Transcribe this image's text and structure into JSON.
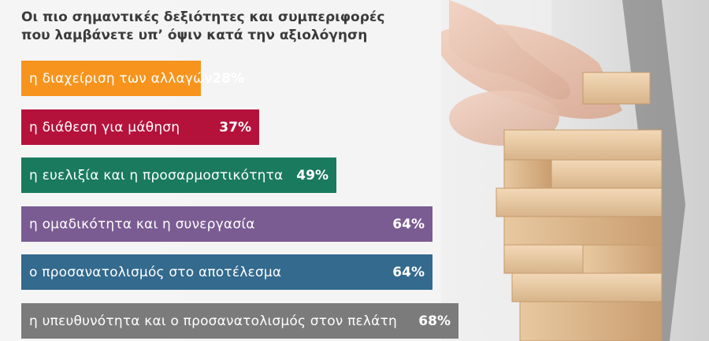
{
  "title_line1": "Οι πιο σημαντικές δεξιότητες και συμπεριφορές",
  "title_line2": "που λαμβάνετε υπ’ όψιν κατά την αξιολόγηση",
  "chart_data": {
    "type": "bar",
    "orientation": "horizontal",
    "title": "Οι πιο σημαντικές δεξιότητες και συμπεριφορές που λαμβάνετε υπ’ όψιν κατά την αξιολόγηση",
    "xlim": [
      0,
      100
    ],
    "categories": [
      "η διαχείριση των αλλαγών",
      "η διάθεση για μάθηση",
      "η ευελιξία και η προσαρμοστικότητα",
      "η ομαδικότητα και η συνεργασία",
      "ο προσανατολισμός στο αποτέλεσμα",
      "η υπευθυνότητα και ο προσανατολισμός στον πελάτη"
    ],
    "values": [
      28,
      37,
      49,
      64,
      64,
      68
    ],
    "value_labels": [
      "28%",
      "37%",
      "49%",
      "64%",
      "64%",
      "68%"
    ],
    "colors": [
      "#f7941d",
      "#b5123b",
      "#1a7a5e",
      "#7a5c92",
      "#336a8e",
      "#7b7b7b"
    ]
  }
}
